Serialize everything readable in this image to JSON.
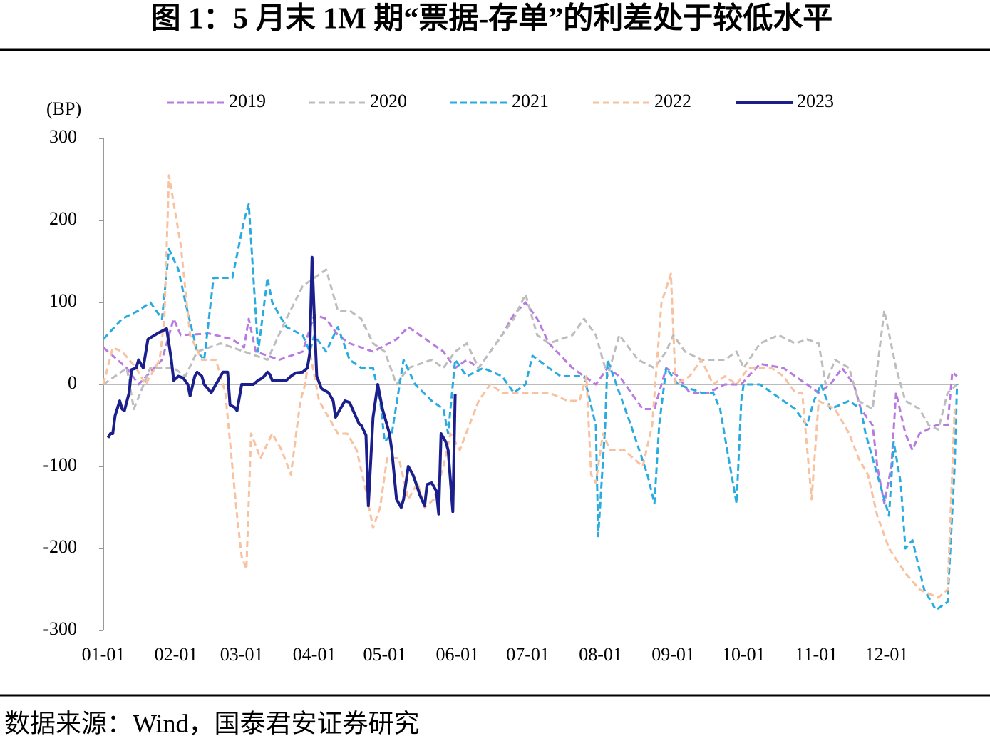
{
  "chart_data": {
    "type": "line",
    "title": "图 1：5 月末 1M 期“票据-存单”的利差处于较低水平",
    "source": "数据来源：Wind，国泰君安证券研究",
    "y_label": "(BP)",
    "xlim": [
      0,
      365
    ],
    "ylim": [
      -300,
      300
    ],
    "yticks": [
      -300,
      -200,
      -100,
      0,
      100,
      200,
      300
    ],
    "xticks": [
      {
        "value": 0,
        "label": "01-01"
      },
      {
        "value": 31,
        "label": "02-01"
      },
      {
        "value": 59,
        "label": "03-01"
      },
      {
        "value": 90,
        "label": "04-01"
      },
      {
        "value": 120,
        "label": "05-01"
      },
      {
        "value": 151,
        "label": "06-01"
      },
      {
        "value": 181,
        "label": "07-01"
      },
      {
        "value": 212,
        "label": "08-01"
      },
      {
        "value": 243,
        "label": "09-01"
      },
      {
        "value": 273,
        "label": "10-01"
      },
      {
        "value": 304,
        "label": "11-01"
      },
      {
        "value": 334,
        "label": "12-01"
      }
    ],
    "series": [
      {
        "name": "2019",
        "color": "#b77be0",
        "dashed": true,
        "x": [
          0,
          10,
          15,
          25,
          30,
          33,
          45,
          55,
          60,
          62,
          65,
          75,
          85,
          90,
          95,
          100,
          105,
          115,
          125,
          130,
          135,
          145,
          150,
          155,
          160,
          165,
          170,
          175,
          180,
          185,
          190,
          200,
          205,
          210,
          215,
          220,
          230,
          235,
          240,
          245,
          250,
          258,
          265,
          272,
          275,
          280,
          290,
          295,
          300,
          305,
          310,
          315,
          320,
          323,
          328,
          330,
          333,
          336,
          338,
          342,
          345,
          348,
          355,
          360,
          362,
          364
        ],
        "values": [
          45,
          20,
          0,
          30,
          80,
          60,
          62,
          55,
          45,
          80,
          40,
          30,
          40,
          85,
          80,
          60,
          50,
          40,
          55,
          70,
          60,
          40,
          20,
          30,
          20,
          40,
          60,
          85,
          100,
          80,
          50,
          20,
          10,
          0,
          20,
          10,
          -30,
          -30,
          20,
          10,
          -10,
          -10,
          0,
          0,
          10,
          25,
          20,
          10,
          0,
          -10,
          0,
          20,
          0,
          -30,
          -50,
          -100,
          -145,
          -100,
          -10,
          -60,
          -80,
          -60,
          -50,
          -50,
          15,
          10
        ]
      },
      {
        "name": "2020",
        "color": "#bdbdbd",
        "dashed": true,
        "x": [
          0,
          5,
          10,
          13,
          20,
          30,
          35,
          40,
          50,
          60,
          70,
          78,
          85,
          90,
          95,
          100,
          105,
          110,
          115,
          120,
          125,
          130,
          140,
          145,
          150,
          155,
          160,
          165,
          175,
          180,
          185,
          190,
          200,
          205,
          210,
          215,
          220,
          228,
          235,
          240,
          243,
          248,
          255,
          265,
          270,
          273,
          280,
          288,
          295,
          300,
          305,
          308,
          312,
          318,
          322,
          328,
          330,
          333,
          338,
          342,
          348,
          352,
          356,
          360,
          364
        ],
        "values": [
          0,
          10,
          20,
          -30,
          20,
          20,
          10,
          40,
          50,
          40,
          30,
          80,
          120,
          130,
          140,
          90,
          90,
          80,
          50,
          40,
          0,
          20,
          30,
          20,
          40,
          50,
          20,
          40,
          80,
          110,
          60,
          50,
          60,
          80,
          60,
          10,
          60,
          30,
          20,
          40,
          60,
          40,
          30,
          30,
          40,
          20,
          50,
          60,
          50,
          55,
          50,
          0,
          30,
          20,
          -20,
          -30,
          20,
          90,
          20,
          -20,
          -30,
          -50,
          -55,
          -10,
          0
        ]
      },
      {
        "name": "2021",
        "color": "#29abe2",
        "dashed": true,
        "x": [
          0,
          8,
          15,
          20,
          25,
          28,
          32,
          35,
          40,
          43,
          47,
          55,
          60,
          62,
          66,
          70,
          72,
          78,
          85,
          88,
          90,
          95,
          100,
          105,
          110,
          115,
          118,
          120,
          123,
          128,
          133,
          140,
          145,
          147,
          150,
          155,
          162,
          170,
          175,
          180,
          183,
          190,
          195,
          205,
          210,
          211,
          214,
          215,
          220,
          225,
          232,
          235,
          237,
          240,
          245,
          255,
          260,
          263,
          266,
          270,
          272,
          273,
          280,
          285,
          290,
          295,
          300,
          303,
          306,
          310,
          318,
          323,
          325,
          335,
          337,
          340,
          342,
          345,
          350,
          355,
          360,
          363,
          364
        ],
        "values": [
          55,
          80,
          90,
          100,
          80,
          165,
          140,
          100,
          40,
          30,
          130,
          130,
          200,
          220,
          40,
          130,
          100,
          70,
          60,
          40,
          60,
          40,
          70,
          30,
          20,
          20,
          -20,
          -70,
          -60,
          30,
          0,
          -20,
          -30,
          -60,
          30,
          10,
          20,
          10,
          -10,
          0,
          35,
          20,
          10,
          10,
          -50,
          -185,
          -50,
          30,
          -10,
          -50,
          -110,
          -145,
          -50,
          20,
          0,
          -10,
          -10,
          -30,
          -80,
          -145,
          -20,
          0,
          0,
          -10,
          -20,
          -30,
          -50,
          -20,
          0,
          -30,
          -20,
          -30,
          -60,
          -160,
          -70,
          -120,
          -200,
          -190,
          -250,
          -275,
          -265,
          -100,
          0
        ]
      },
      {
        "name": "2022",
        "color": "#f8c19f",
        "dashed": true,
        "x": [
          0,
          4,
          8,
          14,
          18,
          24,
          26,
          28,
          33,
          37,
          42,
          48,
          52,
          57,
          59,
          61,
          63,
          67,
          72,
          76,
          80,
          84,
          86,
          88,
          92,
          96,
          100,
          104,
          108,
          112,
          115,
          118,
          121,
          126,
          130,
          134,
          137,
          141,
          145,
          148,
          152,
          156,
          160,
          165,
          170,
          176,
          182,
          190,
          198,
          203,
          206,
          208,
          210,
          213,
          216,
          222,
          226,
          230,
          234,
          238,
          242,
          244,
          250,
          255,
          260,
          265,
          270,
          275,
          285,
          290,
          295,
          298,
          302,
          305,
          312,
          318,
          322,
          326,
          330,
          335,
          342,
          348,
          356,
          360,
          363
        ],
        "values": [
          0,
          45,
          40,
          20,
          0,
          30,
          80,
          255,
          170,
          60,
          30,
          30,
          -10,
          -160,
          -210,
          -225,
          -60,
          -90,
          -60,
          -80,
          -110,
          -20,
          0,
          40,
          -20,
          -40,
          -60,
          -60,
          -80,
          -130,
          -175,
          -150,
          -90,
          -90,
          -140,
          -120,
          -150,
          -140,
          -100,
          -60,
          -80,
          -50,
          -20,
          0,
          -10,
          -10,
          -10,
          -10,
          -20,
          -20,
          10,
          -110,
          -120,
          -60,
          -80,
          -80,
          -90,
          -100,
          -50,
          100,
          135,
          0,
          10,
          30,
          0,
          10,
          0,
          20,
          20,
          10,
          -10,
          -10,
          -140,
          -20,
          -30,
          -60,
          -90,
          -110,
          -160,
          -200,
          -230,
          -250,
          -260,
          -250,
          -30
        ]
      },
      {
        "name": "2023",
        "color": "#1a1f8c",
        "dashed": false,
        "x": [
          2,
          3,
          4,
          5,
          7,
          8,
          9,
          11,
          12,
          14,
          15,
          17,
          19,
          23,
          27,
          29,
          30,
          32,
          34,
          36,
          37,
          39,
          40,
          42,
          43,
          46,
          48,
          51,
          53,
          54,
          56,
          57,
          59,
          64,
          66,
          68,
          70,
          71,
          72,
          74,
          77,
          78,
          80,
          82,
          85,
          87,
          88,
          89,
          90,
          91,
          93,
          96,
          98,
          99,
          101,
          103,
          105,
          107,
          109,
          110,
          112,
          113,
          115,
          117,
          119,
          122,
          123,
          125,
          127,
          128,
          130,
          132,
          133,
          135,
          137,
          138,
          140,
          142,
          143,
          144,
          146,
          147,
          149,
          150
        ],
        "values": [
          -65,
          -60,
          -60,
          -38,
          -20,
          -30,
          -32,
          -10,
          18,
          20,
          30,
          20,
          55,
          62,
          68,
          30,
          5,
          10,
          8,
          0,
          -14,
          10,
          15,
          10,
          0,
          -10,
          0,
          15,
          15,
          -25,
          -28,
          -32,
          0,
          0,
          5,
          8,
          15,
          12,
          5,
          5,
          5,
          5,
          10,
          14,
          15,
          20,
          38,
          155,
          80,
          10,
          -5,
          -10,
          -20,
          -40,
          -30,
          -20,
          -22,
          -35,
          -48,
          -50,
          -62,
          -148,
          -40,
          0,
          -30,
          -60,
          -80,
          -140,
          -150,
          -140,
          -100,
          -110,
          -118,
          -135,
          -148,
          -122,
          -120,
          -130,
          -158,
          -60,
          -70,
          -80,
          -155,
          -12
        ]
      }
    ]
  }
}
